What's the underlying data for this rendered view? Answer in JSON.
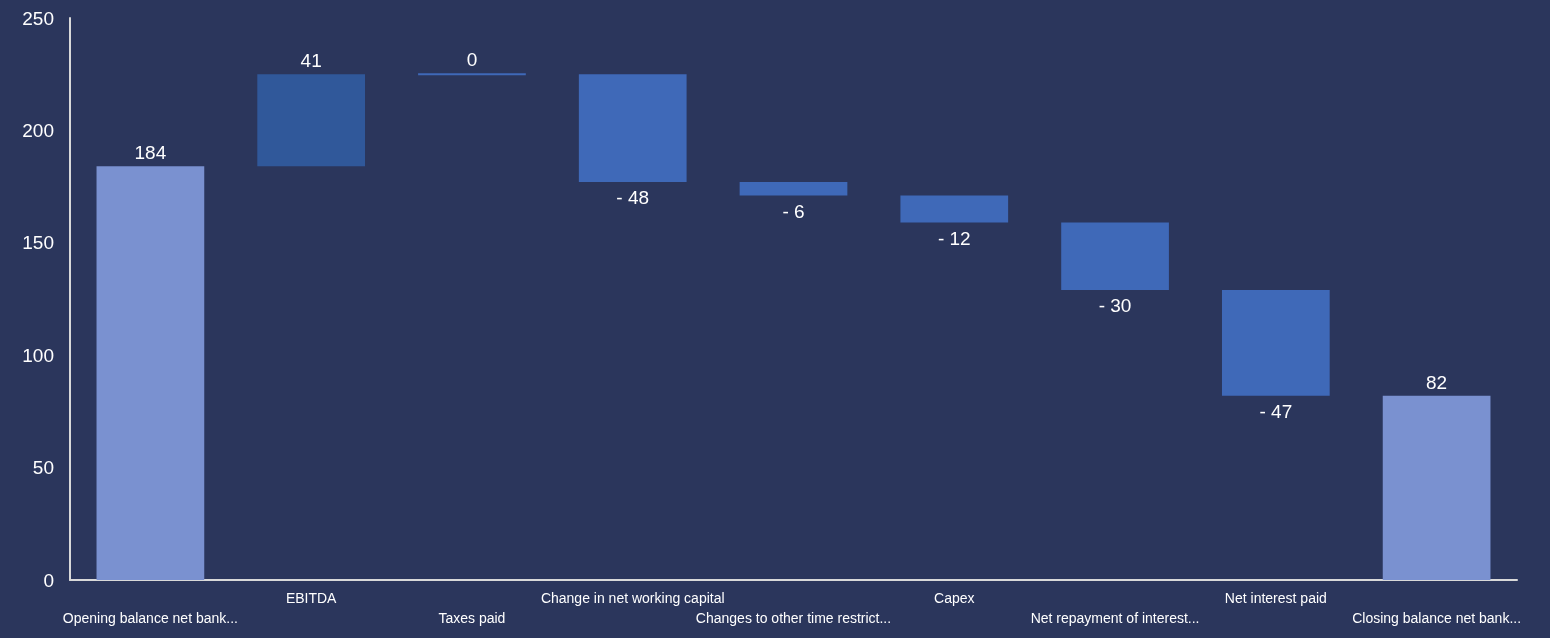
{
  "chart_data": {
    "type": "bar",
    "categories": [
      "Opening balance net bank...",
      "EBITDA",
      "Taxes paid",
      "Change in net working capital",
      "Changes to other time restrict...",
      "Capex",
      "Net repayment of interest...",
      "Net interest paid",
      "Closing balance net bank..."
    ],
    "values": [
      184,
      41,
      0,
      -48,
      -6,
      -12,
      -30,
      -47,
      82
    ],
    "base": [
      0,
      184,
      225,
      225,
      177,
      171,
      159,
      129,
      0
    ],
    "colors": [
      "#7a91d0",
      "#30589a",
      "#3f69b8",
      "#3f69b8",
      "#3f69b8",
      "#3f69b8",
      "#3f69b8",
      "#3f69b8",
      "#7a91d0"
    ],
    "value_labels": [
      "184",
      "41",
      "0",
      "- 48",
      "- 6",
      "- 12",
      "- 30",
      "- 47",
      "82"
    ],
    "ylim": [
      0,
      250
    ],
    "yticks": [
      0,
      50,
      100,
      150,
      200,
      250
    ],
    "grid": false
  }
}
